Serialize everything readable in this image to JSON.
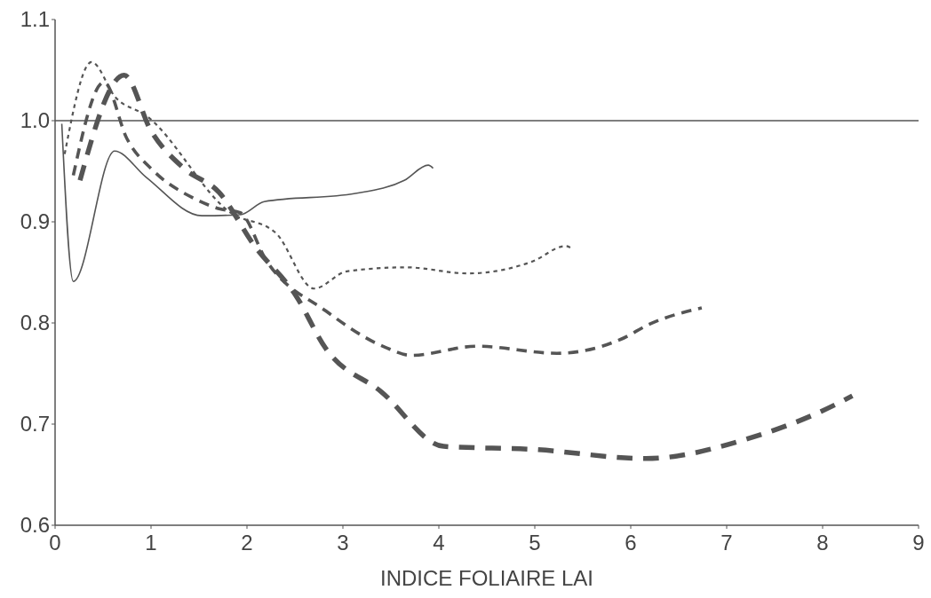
{
  "chart_data": {
    "type": "line",
    "xlabel": "INDICE FOLIAIRE LAI",
    "xlim": [
      0,
      9
    ],
    "xticks": [
      0,
      1,
      2,
      3,
      4,
      5,
      6,
      7,
      8,
      9
    ],
    "ylim": [
      0.6,
      1.1
    ],
    "yticks": [
      0.6,
      0.7,
      0.8,
      0.9,
      {
        "value": 1,
        "label": "1.0"
      },
      1.1
    ],
    "grid": false,
    "ref_lines": [
      {
        "axis": "y",
        "value": 1,
        "color": "#555555",
        "line_style": "solid"
      }
    ],
    "series": [
      {
        "color": "#555555",
        "line_style": "solid",
        "x": [
          0.07,
          0.19,
          0.62,
          0.95,
          1.53,
          1.93,
          2.18,
          3.13,
          3.64,
          3.89,
          3.94
        ],
        "values": [
          0.997,
          0.841,
          0.97,
          0.944,
          0.906,
          0.907,
          0.92,
          0.928,
          0.941,
          0.956,
          0.953
        ]
      },
      {
        "color": "#555555",
        "line_style": "dotted",
        "x": [
          0.1,
          0.38,
          0.63,
          0.95,
          1.83,
          2.3,
          2.7,
          3.04,
          3.66,
          4.3,
          4.98,
          5.32,
          5.4
        ],
        "values": [
          0.967,
          1.058,
          1.023,
          1.005,
          0.909,
          0.889,
          0.834,
          0.851,
          0.855,
          0.849,
          0.861,
          0.876,
          0.873
        ]
      },
      {
        "color": "#555555",
        "line_style": "dashed",
        "x": [
          0.19,
          0.51,
          0.75,
          1.03,
          1.43,
          1.71,
          1.93,
          2.2,
          2.82,
          3.44,
          3.71,
          4.4,
          5.23,
          5.9,
          6.2,
          6.74
        ],
        "values": [
          0.946,
          1.038,
          0.982,
          0.95,
          0.924,
          0.913,
          0.909,
          0.862,
          0.812,
          0.776,
          0.768,
          0.777,
          0.77,
          0.784,
          0.799,
          0.815
        ]
      },
      {
        "color": "#555555",
        "line_style": "dashed",
        "x": [
          0.26,
          0.72,
          1.0,
          1.34,
          1.71,
          2.08,
          2.51,
          2.82,
          3.4,
          4.05,
          4.98,
          6.16,
          7.2,
          8.19,
          8.31
        ],
        "values": [
          0.941,
          1.045,
          0.99,
          0.953,
          0.929,
          0.876,
          0.827,
          0.775,
          0.732,
          0.678,
          0.675,
          0.666,
          0.685,
          0.722,
          0.728
        ]
      }
    ]
  }
}
